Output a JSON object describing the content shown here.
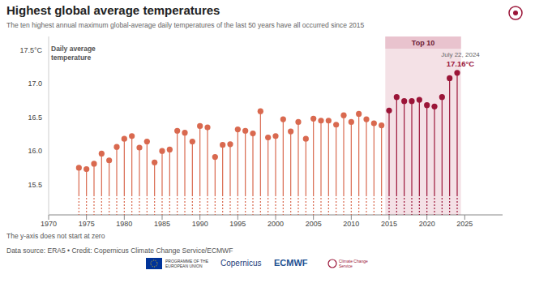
{
  "chart_data": {
    "type": "lollipop",
    "title": "Highest global average temperatures",
    "subtitle": "The ten highest annual maximum global-average daily temperatures of the last 50 years have all occurred since 2015",
    "y_label": "Daily average temperature",
    "x": [
      1974,
      1975,
      1976,
      1977,
      1978,
      1979,
      1980,
      1981,
      1982,
      1983,
      1984,
      1985,
      1986,
      1987,
      1988,
      1989,
      1990,
      1991,
      1992,
      1993,
      1994,
      1995,
      1996,
      1997,
      1998,
      1999,
      2000,
      2001,
      2002,
      2003,
      2004,
      2005,
      2006,
      2007,
      2008,
      2009,
      2010,
      2011,
      2012,
      2013,
      2014,
      2015,
      2016,
      2017,
      2018,
      2019,
      2020,
      2021,
      2022,
      2023,
      2024
    ],
    "values": [
      15.75,
      15.73,
      15.81,
      15.96,
      15.86,
      16.06,
      16.18,
      16.22,
      16.05,
      16.14,
      15.83,
      16.0,
      16.02,
      16.3,
      16.27,
      16.14,
      16.37,
      16.35,
      15.91,
      16.09,
      16.1,
      16.32,
      16.3,
      16.26,
      16.59,
      16.2,
      16.22,
      16.47,
      16.29,
      16.43,
      16.18,
      16.48,
      16.45,
      16.45,
      16.39,
      16.53,
      16.43,
      16.55,
      16.47,
      16.41,
      16.38,
      16.6,
      16.8,
      16.74,
      16.74,
      16.76,
      16.68,
      16.66,
      16.8,
      17.08,
      17.16
    ],
    "colors": [
      "#d9694f",
      "#d9694f",
      "#d9694f",
      "#d9694f",
      "#d9694f",
      "#d9694f",
      "#d9694f",
      "#d9694f",
      "#d9694f",
      "#d9694f",
      "#d9694f",
      "#d9694f",
      "#d9694f",
      "#d9694f",
      "#d9694f",
      "#d9694f",
      "#d9694f",
      "#d9694f",
      "#d9694f",
      "#d9694f",
      "#d9694f",
      "#d9694f",
      "#d9694f",
      "#d9694f",
      "#d9694f",
      "#d9694f",
      "#d9694f",
      "#d9694f",
      "#d9694f",
      "#d9694f",
      "#d9694f",
      "#d9694f",
      "#d9694f",
      "#d9694f",
      "#d9694f",
      "#d9694f",
      "#d9694f",
      "#d9694f",
      "#d9694f",
      "#d9694f",
      "#d9694f",
      "#9b1538",
      "#9b1538",
      "#9b1538",
      "#9b1538",
      "#9b1538",
      "#9b1538",
      "#9b1538",
      "#9b1538",
      "#9b1538",
      "#9b1538"
    ],
    "xlim": [
      1970,
      2030
    ],
    "xticks": [
      1970,
      1975,
      1980,
      1985,
      1990,
      1995,
      2000,
      2005,
      2010,
      2015,
      2020,
      2025
    ],
    "ylim": [
      15.05,
      17.7
    ],
    "yticks": [
      15.5,
      {
        "value": 16,
        "label": "16.0"
      },
      16.5,
      {
        "value": 17,
        "label": "17.0"
      },
      {
        "value": 17.5,
        "label": "17.5°C"
      }
    ],
    "grid": false,
    "annotations": [
      {
        "text": "Top 10",
        "xrange": [
          2015,
          2024
        ]
      },
      {
        "text": "July 22, 2024",
        "x": 2024,
        "y": 17.16
      },
      {
        "text": "17.16°C",
        "x": 2024,
        "y": 17.16
      }
    ],
    "notes": [
      "The y-axis does not start at zero"
    ],
    "source": "Data source: ERA5 • Credit: Copernicus Climate Change Service/ECMWF",
    "logos": [
      "PROGRAMME OF THE EUROPEAN UNION",
      "Copernicus",
      "ECMWF",
      "Climate Change Service"
    ]
  }
}
